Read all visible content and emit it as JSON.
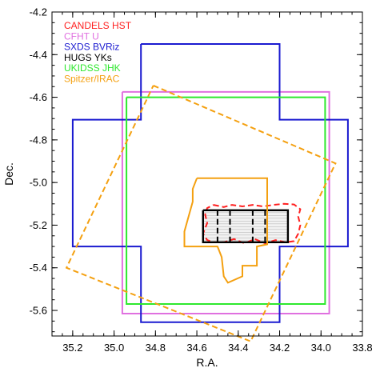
{
  "chart_data": {
    "type": "line",
    "title": "",
    "xlabel": "R.A.",
    "ylabel": "Dec.",
    "xlim": [
      35.3,
      33.8
    ],
    "ylim": [
      -5.72,
      -4.2
    ],
    "x_reversed": true,
    "grid": false,
    "legend_position": "top-left",
    "x_ticks": [
      35.2,
      35.0,
      34.8,
      34.6,
      34.4,
      34.2,
      34.0,
      33.8
    ],
    "x_tick_labels": [
      "35.2",
      "35.0",
      "34.8",
      "34.6",
      "34.4",
      "34.2",
      "34.0",
      "33.8"
    ],
    "y_ticks": [
      -4.2,
      -4.4,
      -4.6,
      -4.8,
      -5.0,
      -5.2,
      -5.4,
      -5.6
    ],
    "y_tick_labels": [
      "-4.2",
      "-4.4",
      "-4.6",
      "-4.8",
      "-5.0",
      "-5.2",
      "-5.4",
      "-5.6"
    ],
    "series": [
      {
        "name": "CANDELS HST",
        "color": "#ff2020",
        "dash": "dashed",
        "points": [
          [
            34.52,
            -5.105
          ],
          [
            34.47,
            -5.115
          ],
          [
            34.43,
            -5.105
          ],
          [
            34.38,
            -5.112
          ],
          [
            34.33,
            -5.105
          ],
          [
            34.28,
            -5.112
          ],
          [
            34.23,
            -5.105
          ],
          [
            34.18,
            -5.1
          ],
          [
            34.13,
            -5.103
          ],
          [
            34.1,
            -5.125
          ],
          [
            34.11,
            -5.16
          ],
          [
            34.1,
            -5.2
          ],
          [
            34.11,
            -5.24
          ],
          [
            34.13,
            -5.275
          ],
          [
            34.17,
            -5.28
          ],
          [
            34.22,
            -5.27
          ],
          [
            34.27,
            -5.285
          ],
          [
            34.32,
            -5.265
          ],
          [
            34.37,
            -5.285
          ],
          [
            34.42,
            -5.265
          ],
          [
            34.47,
            -5.28
          ],
          [
            34.52,
            -5.28
          ],
          [
            34.55,
            -5.27
          ],
          [
            34.57,
            -5.24
          ],
          [
            34.55,
            -5.19
          ],
          [
            34.56,
            -5.15
          ],
          [
            34.55,
            -5.12
          ],
          [
            34.52,
            -5.105
          ]
        ]
      },
      {
        "name": "CFHT U",
        "color": "#e070e0",
        "dash": "solid",
        "points": [
          [
            34.96,
            -4.575
          ],
          [
            33.96,
            -4.575
          ],
          [
            33.96,
            -5.615
          ],
          [
            34.96,
            -5.615
          ],
          [
            34.96,
            -4.575
          ]
        ]
      },
      {
        "name": "SXDS BVRiz",
        "color": "#1a1ad0",
        "dash": "solid",
        "points": [
          [
            34.87,
            -4.35
          ],
          [
            34.2,
            -4.35
          ],
          [
            34.2,
            -4.705
          ],
          [
            33.87,
            -4.705
          ],
          [
            33.87,
            -5.3
          ],
          [
            34.2,
            -5.3
          ],
          [
            34.2,
            -5.655
          ],
          [
            34.87,
            -5.655
          ],
          [
            34.87,
            -5.3
          ],
          [
            35.2,
            -5.3
          ],
          [
            35.2,
            -4.705
          ],
          [
            34.87,
            -4.705
          ],
          [
            34.87,
            -4.35
          ]
        ]
      },
      {
        "name": "HUGS YKs",
        "color": "#000000",
        "dash": "solid",
        "points": [
          [
            34.57,
            -5.13
          ],
          [
            34.16,
            -5.13
          ],
          [
            34.16,
            -5.28
          ],
          [
            34.57,
            -5.28
          ],
          [
            34.57,
            -5.13
          ]
        ]
      },
      {
        "name": "UKIDSS JHK",
        "color": "#2ee82e",
        "dash": "solid",
        "points": [
          [
            34.94,
            -4.6
          ],
          [
            33.98,
            -4.6
          ],
          [
            33.98,
            -5.57
          ],
          [
            34.94,
            -5.57
          ],
          [
            34.94,
            -4.6
          ]
        ]
      },
      {
        "name": "Spitzer/IRAC",
        "color": "#f4a010",
        "dash": "dashed",
        "points": [
          [
            34.81,
            -4.545
          ],
          [
            33.93,
            -4.91
          ],
          [
            34.34,
            -5.745
          ],
          [
            35.23,
            -5.4
          ],
          [
            34.81,
            -4.545
          ]
        ]
      },
      {
        "name": "",
        "color": "#f4a010",
        "dash": "solid",
        "points": [
          [
            34.6,
            -4.98
          ],
          [
            34.26,
            -4.98
          ],
          [
            34.26,
            -5.29
          ],
          [
            34.31,
            -5.3
          ],
          [
            34.31,
            -5.39
          ],
          [
            34.38,
            -5.39
          ],
          [
            34.38,
            -5.44
          ],
          [
            34.45,
            -5.47
          ],
          [
            34.47,
            -5.44
          ],
          [
            34.48,
            -5.35
          ],
          [
            34.5,
            -5.3
          ],
          [
            34.66,
            -5.3
          ],
          [
            34.66,
            -5.23
          ],
          [
            34.62,
            -5.09
          ],
          [
            34.62,
            -5.03
          ],
          [
            34.6,
            -4.98
          ]
        ]
      },
      {
        "name": "",
        "color": "#000000",
        "dash": "dashed",
        "points": [
          [
            34.5,
            -5.13
          ],
          [
            34.5,
            -5.28
          ]
        ]
      },
      {
        "name": "",
        "color": "#000000",
        "dash": "dashed",
        "points": [
          [
            34.44,
            -5.13
          ],
          [
            34.44,
            -5.28
          ]
        ]
      },
      {
        "name": "",
        "color": "#000000",
        "dash": "dashed",
        "points": [
          [
            34.33,
            -5.13
          ],
          [
            34.33,
            -5.28
          ]
        ]
      },
      {
        "name": "",
        "color": "#000000",
        "dash": "dashed",
        "points": [
          [
            34.27,
            -5.13
          ],
          [
            34.27,
            -5.28
          ]
        ]
      }
    ]
  }
}
